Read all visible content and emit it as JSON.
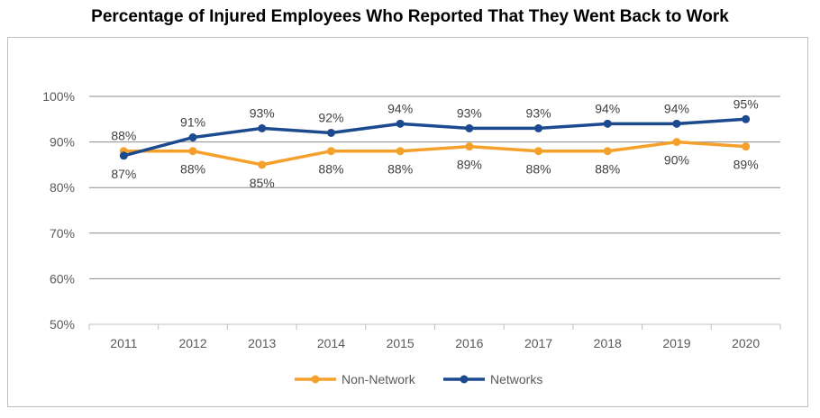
{
  "chart_data": {
    "type": "line",
    "title": "Percentage of Injured Employees Who Reported That They Went Back to Work",
    "xlabel": "",
    "ylabel": "",
    "categories": [
      "2011",
      "2012",
      "2013",
      "2014",
      "2015",
      "2016",
      "2017",
      "2018",
      "2019",
      "2020"
    ],
    "ylim": [
      50,
      100
    ],
    "yticks": [
      "50%",
      "60%",
      "70%",
      "80%",
      "90%",
      "100%"
    ],
    "grid": true,
    "legend": "bottom",
    "series": [
      {
        "name": "Non-Network",
        "color": "#f5a02a",
        "values": [
          88,
          88,
          85,
          88,
          88,
          89,
          88,
          88,
          90,
          89
        ],
        "labels": [
          "88%",
          "88%",
          "85%",
          "88%",
          "88%",
          "89%",
          "88%",
          "88%",
          "90%",
          "89%"
        ]
      },
      {
        "name": "Networks",
        "color": "#1b4a8f",
        "values": [
          87,
          91,
          93,
          92,
          94,
          93,
          93,
          94,
          94,
          95
        ],
        "labels": [
          "87%",
          "91%",
          "93%",
          "92%",
          "94%",
          "93%",
          "93%",
          "94%",
          "94%",
          "95%"
        ]
      }
    ]
  }
}
